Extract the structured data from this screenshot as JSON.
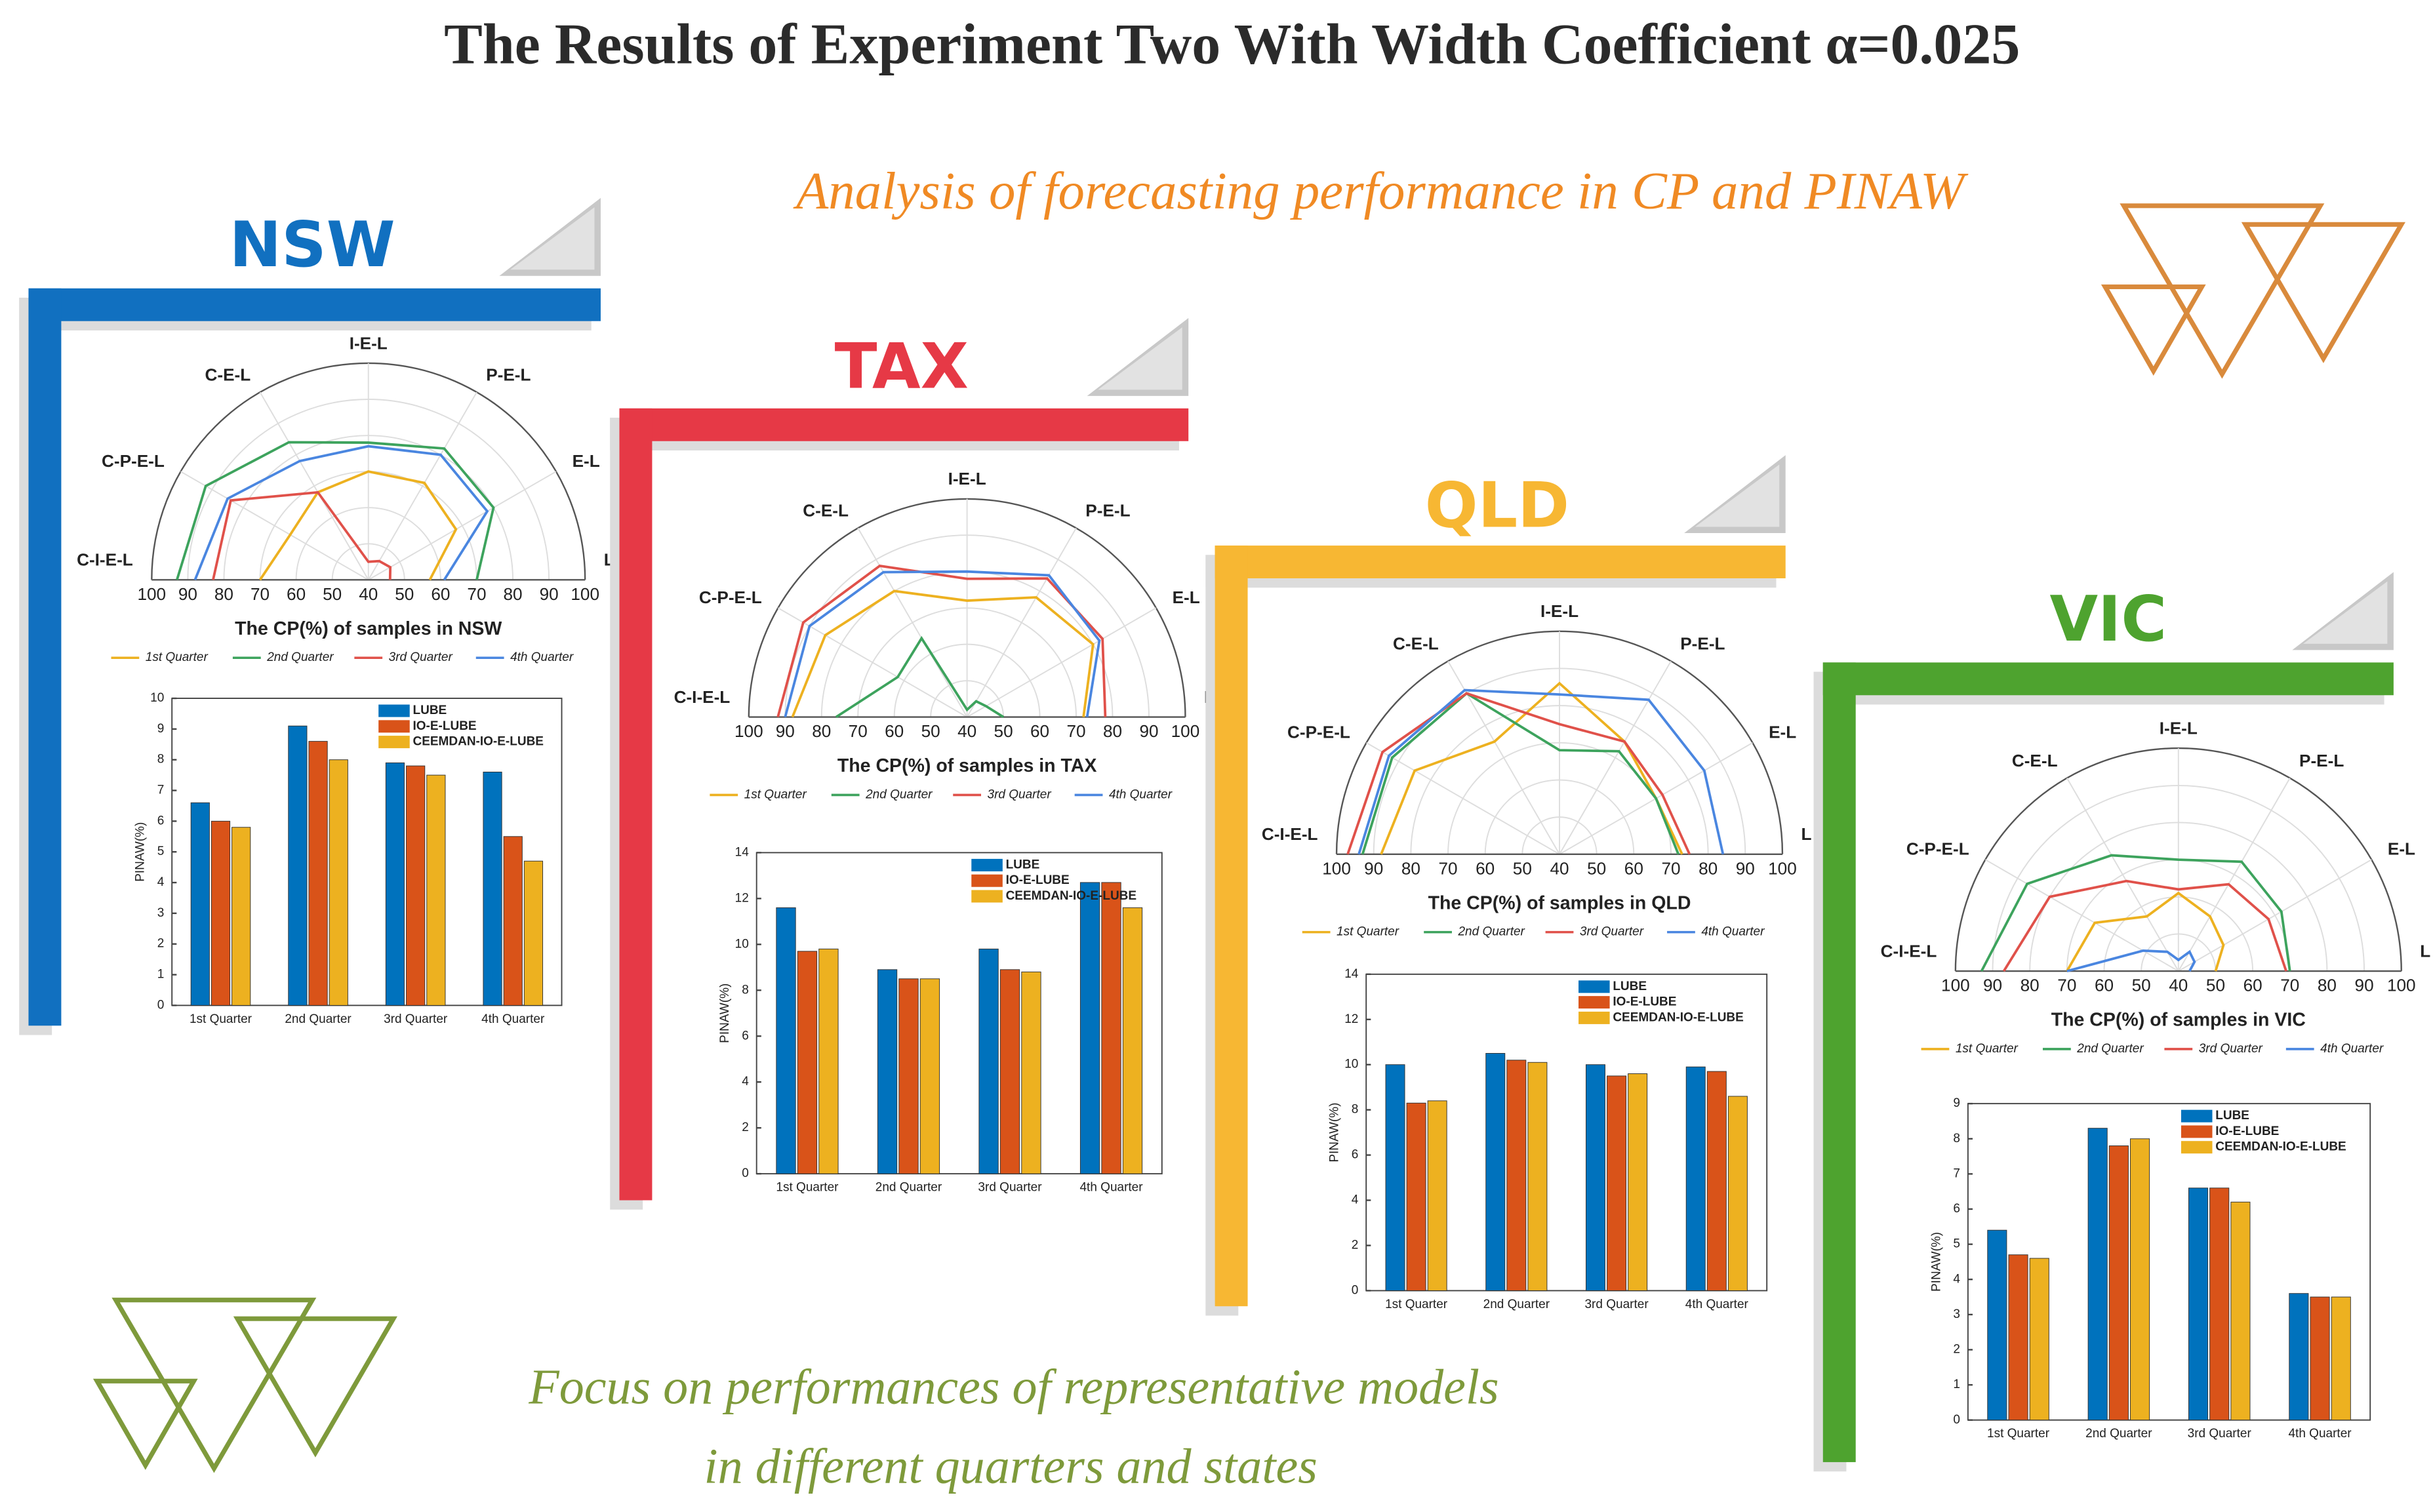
{
  "title": "The Results of Experiment Two With Width Coefficient  α=0.025",
  "subtitle": "Analysis of forecasting performance in CP and PINAW",
  "footer": [
    "Focus on performances of representative models",
    "in different quarters and states"
  ],
  "states": [
    "NSW",
    "TAX",
    "QLD",
    "VIC"
  ],
  "chart_data": [
    {
      "type": "radar",
      "xlabel": "The CP(%) of samples in NSW",
      "categories": [
        "C-I-E-L",
        "C-P-E-L",
        "C-E-L",
        "I-E-L",
        "P-E-L",
        "E-L",
        "L"
      ],
      "rlim": [
        40,
        100
      ],
      "rticks": [
        40,
        50,
        60,
        70,
        80,
        90,
        100
      ],
      "series": [
        {
          "name": "1st Quarter",
          "color": "#EDB120",
          "values": [
            70,
            65,
            68,
            70,
            71,
            68,
            57
          ]
        },
        {
          "name": "2nd Quarter",
          "color": "#3DA35D",
          "values": [
            93,
            92,
            84,
            78,
            82,
            80,
            70
          ]
        },
        {
          "name": "3rd Quarter",
          "color": "#E0514A",
          "values": [
            83,
            84,
            68,
            45,
            46,
            47,
            46
          ]
        },
        {
          "name": "4th Quarter",
          "color": "#4A86E0",
          "values": [
            88,
            85,
            78,
            77,
            80,
            78,
            61
          ]
        }
      ]
    },
    {
      "type": "bar",
      "ylabel": "PINAW(%)",
      "categories": [
        "1st Quarter",
        "2nd Quarter",
        "3rd Quarter",
        "4th Quarter"
      ],
      "ylim": [
        0,
        10
      ],
      "yticks": [
        0,
        1,
        2,
        3,
        4,
        5,
        6,
        7,
        8,
        9,
        10
      ],
      "series": [
        {
          "name": "LUBE",
          "color": "#0072BD",
          "values": [
            6.6,
            9.1,
            7.9,
            7.6
          ]
        },
        {
          "name": "IO-E-LUBE",
          "color": "#D95319",
          "values": [
            6.0,
            8.6,
            7.8,
            5.5
          ]
        },
        {
          "name": "CEEMDAN-IO-E-LUBE",
          "color": "#EDB120",
          "values": [
            5.8,
            8.0,
            7.5,
            4.7
          ]
        }
      ]
    },
    {
      "type": "radar",
      "xlabel": "The CP(%) of samples in TAX",
      "categories": [
        "C-I-E-L",
        "C-P-E-L",
        "C-E-L",
        "I-E-L",
        "P-E-L",
        "E-L",
        "L"
      ],
      "rlim": [
        40,
        100
      ],
      "rticks": [
        40,
        50,
        60,
        70,
        80,
        90,
        100
      ],
      "series": [
        {
          "name": "1st Quarter",
          "color": "#EDB120",
          "values": [
            88,
            85,
            80,
            72,
            78,
            80,
            72
          ]
        },
        {
          "name": "2nd Quarter",
          "color": "#3DA35D",
          "values": [
            76,
            62,
            65,
            42,
            45,
            46,
            50
          ]
        },
        {
          "name": "3rd Quarter",
          "color": "#E0514A",
          "values": [
            92,
            92,
            88,
            78,
            84,
            83,
            78
          ]
        },
        {
          "name": "4th Quarter",
          "color": "#4A86E0",
          "values": [
            90,
            90,
            86,
            80,
            85,
            82,
            73
          ]
        }
      ]
    },
    {
      "type": "bar",
      "ylabel": "PINAW(%)",
      "categories": [
        "1st Quarter",
        "2nd Quarter",
        "3rd Quarter",
        "4th Quarter"
      ],
      "ylim": [
        0,
        14
      ],
      "yticks": [
        0,
        2,
        4,
        6,
        8,
        10,
        12,
        14
      ],
      "series": [
        {
          "name": "LUBE",
          "color": "#0072BD",
          "values": [
            11.6,
            8.9,
            9.8,
            12.7
          ]
        },
        {
          "name": "IO-E-LUBE",
          "color": "#D95319",
          "values": [
            9.7,
            8.5,
            8.9,
            12.7
          ]
        },
        {
          "name": "CEEMDAN-IO-E-LUBE",
          "color": "#EDB120",
          "values": [
            9.8,
            8.5,
            8.8,
            11.6
          ]
        }
      ]
    },
    {
      "type": "radar",
      "xlabel": "The CP(%) of samples in QLD",
      "categories": [
        "C-I-E-L",
        "C-P-E-L",
        "C-E-L",
        "I-E-L",
        "P-E-L",
        "E-L",
        "L"
      ],
      "rlim": [
        40,
        100
      ],
      "rticks": [
        40,
        50,
        60,
        70,
        80,
        90,
        100
      ],
      "series": [
        {
          "name": "1st Quarter",
          "color": "#EDB120",
          "values": [
            88,
            85,
            75,
            86,
            75,
            70,
            73
          ]
        },
        {
          "name": "2nd Quarter",
          "color": "#3DA35D",
          "values": [
            93,
            92,
            90,
            68,
            72,
            70,
            72
          ]
        },
        {
          "name": "3rd Quarter",
          "color": "#E0514A",
          "values": [
            97,
            95,
            90,
            75,
            75,
            72,
            75
          ]
        },
        {
          "name": "4th Quarter",
          "color": "#4A86E0",
          "values": [
            94,
            93,
            91,
            83,
            88,
            85,
            84
          ]
        }
      ]
    },
    {
      "type": "bar",
      "ylabel": "PINAW(%)",
      "categories": [
        "1st Quarter",
        "2nd Quarter",
        "3rd Quarter",
        "4th Quarter"
      ],
      "ylim": [
        0,
        14
      ],
      "yticks": [
        0,
        2,
        4,
        6,
        8,
        10,
        12,
        14
      ],
      "series": [
        {
          "name": "LUBE",
          "color": "#0072BD",
          "values": [
            10.0,
            10.5,
            10.0,
            9.9
          ]
        },
        {
          "name": "IO-E-LUBE",
          "color": "#D95319",
          "values": [
            8.3,
            10.2,
            9.5,
            9.7
          ]
        },
        {
          "name": "CEEMDAN-IO-E-LUBE",
          "color": "#EDB120",
          "values": [
            8.4,
            10.1,
            9.6,
            8.6
          ]
        }
      ]
    },
    {
      "type": "radar",
      "xlabel": "The CP(%) of samples in VIC",
      "categories": [
        "C-I-E-L",
        "C-P-E-L",
        "C-E-L",
        "I-E-L",
        "P-E-L",
        "E-L",
        "L"
      ],
      "rlim": [
        40,
        100
      ],
      "rticks": [
        40,
        50,
        60,
        70,
        80,
        90,
        100
      ],
      "series": [
        {
          "name": "1st Quarter",
          "color": "#EDB120",
          "values": [
            70,
            66,
            57,
            61,
            57,
            54,
            50
          ]
        },
        {
          "name": "2nd Quarter",
          "color": "#3DA35D",
          "values": [
            93,
            87,
            76,
            70,
            74,
            72,
            70
          ]
        },
        {
          "name": "3rd Quarter",
          "color": "#E0514A",
          "values": [
            87,
            80,
            68,
            62,
            67,
            68,
            69
          ]
        },
        {
          "name": "4th Quarter",
          "color": "#4A86E0",
          "values": [
            70,
            51,
            46,
            43,
            46,
            45,
            43
          ]
        }
      ]
    },
    {
      "type": "bar",
      "ylabel": "PINAW(%)",
      "categories": [
        "1st Quarter",
        "2nd Quarter",
        "3rd Quarter",
        "4th Quarter"
      ],
      "ylim": [
        0,
        9
      ],
      "yticks": [
        0,
        1,
        2,
        3,
        4,
        5,
        6,
        7,
        8,
        9
      ],
      "series": [
        {
          "name": "LUBE",
          "color": "#0072BD",
          "values": [
            5.4,
            8.3,
            6.6,
            3.6
          ]
        },
        {
          "name": "IO-E-LUBE",
          "color": "#D95319",
          "values": [
            4.7,
            7.8,
            6.6,
            3.5
          ]
        },
        {
          "name": "CEEMDAN-IO-E-LUBE",
          "color": "#EDB120",
          "values": [
            4.6,
            8.0,
            6.2,
            3.5
          ]
        }
      ]
    }
  ]
}
